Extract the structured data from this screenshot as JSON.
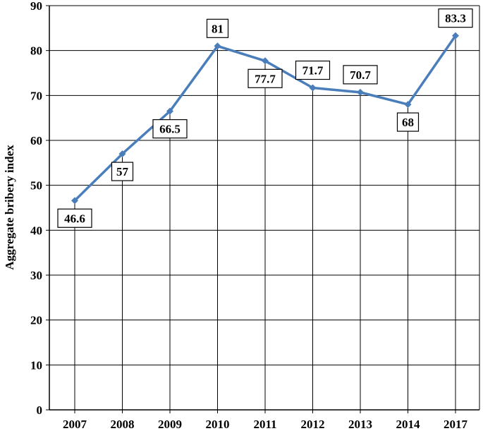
{
  "chart_data": {
    "type": "line",
    "title": "",
    "xlabel": "",
    "ylabel": "Aggregate bribery index",
    "ylim": [
      0,
      90
    ],
    "yticks": [
      0,
      10,
      20,
      30,
      40,
      50,
      60,
      70,
      80,
      90
    ],
    "grid": true,
    "drop_lines": true,
    "categories": [
      "2007",
      "2008",
      "2009",
      "2010",
      "2011",
      "2012",
      "2013",
      "2014",
      "2017"
    ],
    "series": [
      {
        "values": [
          46.6,
          57,
          66.5,
          81,
          77.7,
          71.7,
          70.7,
          68,
          83.3
        ],
        "labels": [
          "46.6",
          "57",
          "66.5",
          "81",
          "77.7",
          "71.7",
          "70.7",
          "68",
          "83.3"
        ],
        "label_position": [
          "below",
          "below",
          "below",
          "above",
          "below",
          "above",
          "above",
          "below",
          "above"
        ],
        "color": "#4a7ebb"
      }
    ]
  }
}
